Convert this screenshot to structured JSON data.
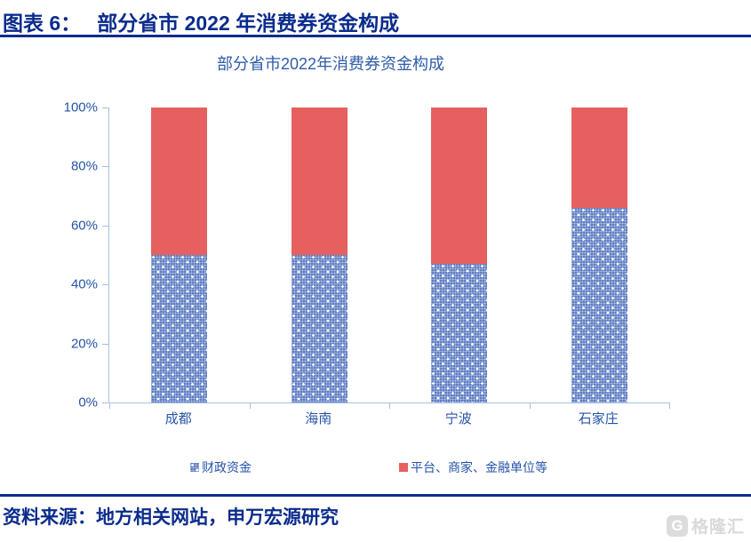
{
  "header": {
    "figure_label": "图表 6：",
    "figure_title": "部分省市 2022 年消费券资金构成"
  },
  "chart_data": {
    "type": "bar",
    "stacked": true,
    "title": "部分省市2022年消费券资金构成",
    "categories": [
      "成都",
      "海南",
      "宁波",
      "石家庄"
    ],
    "series": [
      {
        "name": "财政资金",
        "fill": "pattern-blue",
        "values": [
          50,
          50,
          47,
          66
        ]
      },
      {
        "name": "平台、商家、金融单位等",
        "fill": "solid-red",
        "values": [
          50,
          50,
          53,
          34
        ]
      }
    ],
    "y_ticks": [
      "0%",
      "20%",
      "40%",
      "60%",
      "80%",
      "100%"
    ],
    "ylim": [
      0,
      100
    ],
    "xlabel": "",
    "ylabel": "",
    "grid": false,
    "legend_position": "bottom"
  },
  "footer": {
    "source": "资料来源：地方相关网站，申万宏源研究",
    "logo_text": "格隆汇",
    "logo_icon_letter": "G"
  },
  "colors": {
    "header_navy": "#0B2C8D",
    "chart_text_blue": "#2553A8",
    "title_blue": "#2E5CA8",
    "axis_line_blue": "#A9BEE3",
    "bar_red": "#E5605F",
    "bar_pattern_blue": "#5E7DC3",
    "logo_gray": "#D9D9D9"
  }
}
